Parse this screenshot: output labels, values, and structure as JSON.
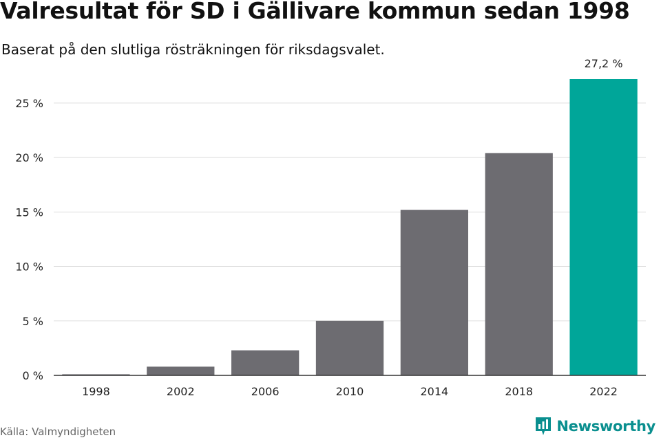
{
  "title": "Valresultat för SD i Gällivare kommun sedan 1998",
  "subtitle": "Baserat på den slutliga rösträkningen för riksdagsvalet.",
  "source": "Källa: Valmyndigheten",
  "brand": {
    "name": "Newsworthy",
    "icon": "newsworthy-logo-icon",
    "color": "#0a8f8f"
  },
  "colors": {
    "bar": "#6d6c71",
    "highlight": "#00a699",
    "grid": "#dddddd",
    "axis": "#333333"
  },
  "chart_data": {
    "type": "bar",
    "categories": [
      "1998",
      "2002",
      "2006",
      "2010",
      "2014",
      "2018",
      "2022"
    ],
    "values": [
      0.1,
      0.8,
      2.3,
      5.0,
      15.2,
      20.4,
      27.2
    ],
    "yticks": [
      "0 %",
      "5 %",
      "10 %",
      "15 %",
      "20 %",
      "25 %"
    ],
    "ytick_values": [
      0,
      5,
      10,
      15,
      20,
      25
    ],
    "ylim": [
      0,
      27.2
    ],
    "highlight_index": 6,
    "data_labels": [
      {
        "index": 6,
        "text": "27,2 %"
      }
    ],
    "grid": true,
    "xlabel": "",
    "ylabel": ""
  }
}
